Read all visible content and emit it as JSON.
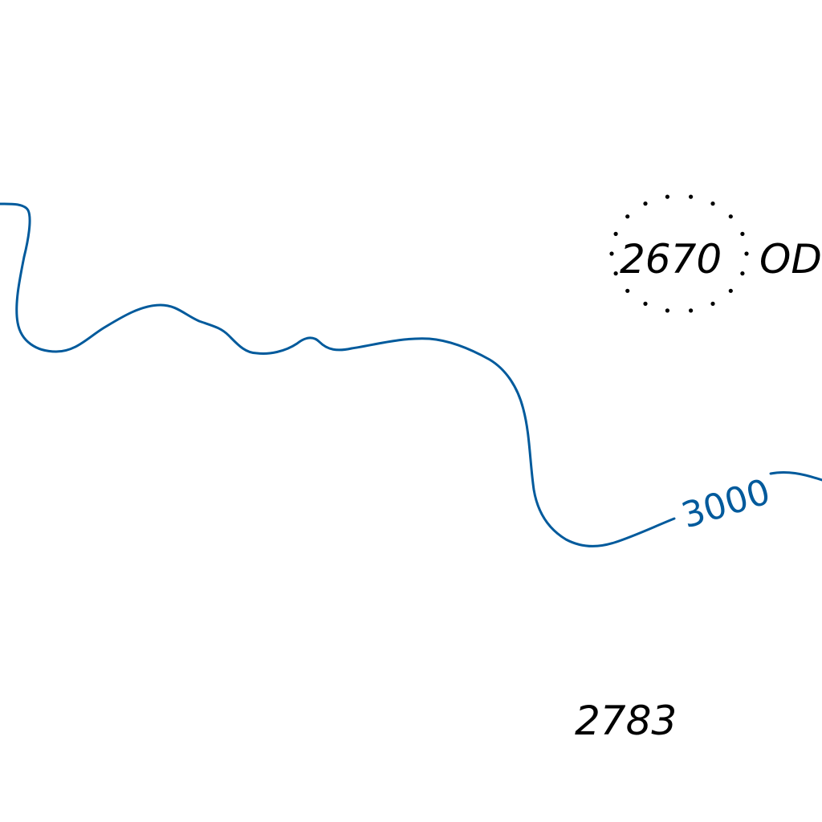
{
  "colors": {
    "background": "#ffffff",
    "contour": "#005a9c",
    "sounding_text": "#000000",
    "danger_dots": "#000000"
  },
  "contour": {
    "depth_label": "3000"
  },
  "soundings": {
    "circled_depth": "2670",
    "circled_note": "OD",
    "depth_lower": "2783"
  }
}
